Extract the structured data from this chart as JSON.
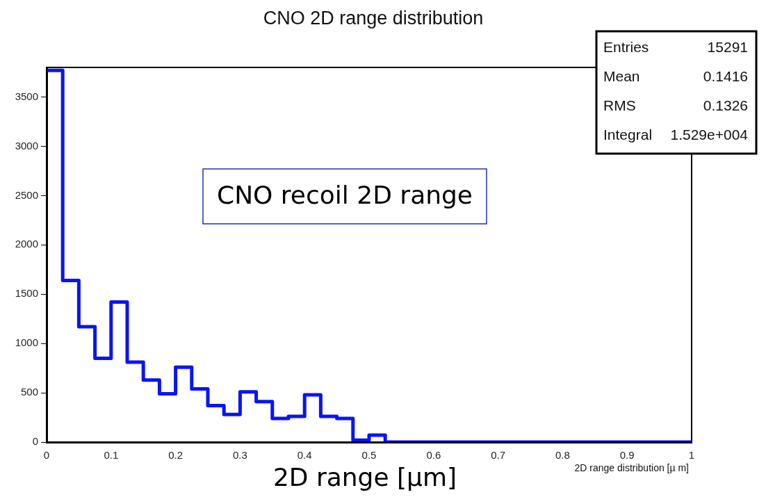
{
  "chart_data": {
    "type": "histogram",
    "title": "CNO 2D range distribution",
    "xlabel": "2D range distribution [µ m]",
    "bins": [
      0,
      0.025,
      0.05,
      0.075,
      0.1,
      0.125,
      0.15,
      0.175,
      0.2,
      0.225,
      0.25,
      0.275,
      0.3,
      0.325,
      0.35,
      0.375,
      0.4,
      0.425,
      0.45,
      0.475,
      0.5,
      0.525,
      0.55,
      0.575,
      0.6,
      0.625,
      0.65,
      0.675,
      0.7,
      0.725,
      0.75,
      0.775,
      0.8,
      0.825,
      0.85,
      0.875,
      0.9,
      0.925,
      0.95,
      0.975,
      1
    ],
    "values": [
      3770,
      1640,
      1170,
      850,
      1420,
      810,
      630,
      490,
      760,
      540,
      370,
      280,
      510,
      410,
      240,
      260,
      480,
      260,
      240,
      20,
      70,
      0,
      0,
      0,
      0,
      0,
      0,
      0,
      0,
      0,
      0,
      0,
      0,
      0,
      0,
      0,
      0,
      0,
      0,
      0
    ],
    "color": "#0a14f5",
    "xlim": [
      0,
      1
    ],
    "xticks": [
      0,
      0.1,
      0.2,
      0.3,
      0.4,
      0.5,
      0.6,
      0.7,
      0.8,
      0.9,
      1
    ],
    "ylim": [
      0,
      3800
    ],
    "yticks": [
      0,
      500,
      1000,
      1500,
      2000,
      2500,
      3000,
      3500
    ],
    "grid": false,
    "legend": false,
    "annotations": [
      "Entries",
      "15291",
      "Mean",
      "0.1416",
      "RMS",
      "0.1326",
      "Integral",
      "1.529e+004",
      "CNO recoil 2D range",
      "2D range [µm]"
    ]
  }
}
